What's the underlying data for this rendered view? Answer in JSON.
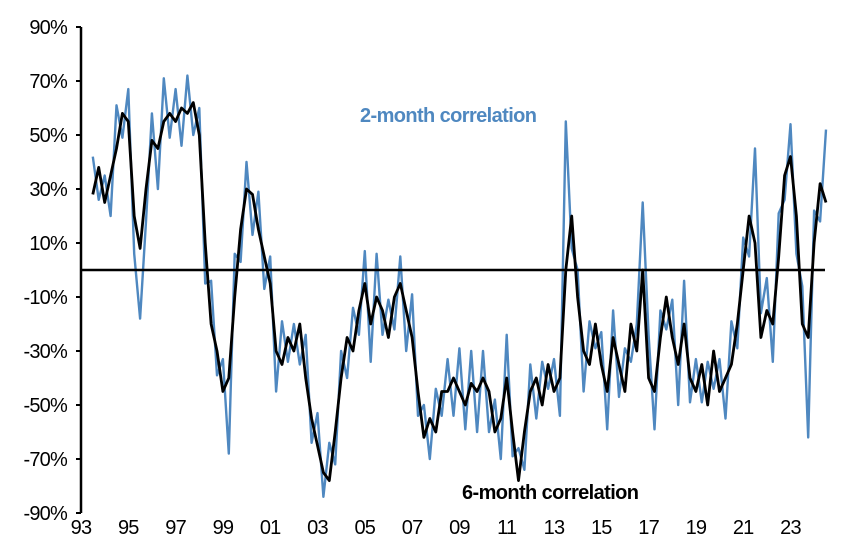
{
  "chart_data": {
    "type": "line",
    "title": "",
    "xlabel": "",
    "ylabel": "",
    "ylim": [
      -90,
      90
    ],
    "xlim": [
      1993,
      2025
    ],
    "y_ticks": [
      "90%",
      "70%",
      "50%",
      "30%",
      "10%",
      "-10%",
      "-30%",
      "-50%",
      "-70%",
      "-90%"
    ],
    "y_tick_values": [
      90,
      70,
      50,
      30,
      10,
      -10,
      -30,
      -50,
      -70,
      -90
    ],
    "x_ticks": [
      "93",
      "95",
      "97",
      "99",
      "01",
      "03",
      "05",
      "07",
      "09",
      "11",
      "13",
      "15",
      "17",
      "19",
      "21",
      "23"
    ],
    "x_tick_values": [
      1993,
      1995,
      1997,
      1999,
      2001,
      2003,
      2005,
      2007,
      2009,
      2011,
      2013,
      2015,
      2017,
      2019,
      2021,
      2023
    ],
    "reference_line": 0,
    "grid": false,
    "x": [
      1993.5,
      1993.75,
      1994,
      1994.25,
      1994.5,
      1994.75,
      1995,
      1995.25,
      1995.5,
      1995.75,
      1996,
      1996.25,
      1996.5,
      1996.75,
      1997,
      1997.25,
      1997.5,
      1997.75,
      1998,
      1998.25,
      1998.5,
      1998.75,
      1999,
      1999.25,
      1999.5,
      1999.75,
      2000,
      2000.25,
      2000.5,
      2000.75,
      2001,
      2001.25,
      2001.5,
      2001.75,
      2002,
      2002.25,
      2002.5,
      2002.75,
      2003,
      2003.25,
      2003.5,
      2003.75,
      2004,
      2004.25,
      2004.5,
      2004.75,
      2005,
      2005.25,
      2005.5,
      2005.75,
      2006,
      2006.25,
      2006.5,
      2006.75,
      2007,
      2007.25,
      2007.5,
      2007.75,
      2008,
      2008.25,
      2008.5,
      2008.75,
      2009,
      2009.25,
      2009.5,
      2009.75,
      2010,
      2010.25,
      2010.5,
      2010.75,
      2011,
      2011.25,
      2011.5,
      2011.75,
      2012,
      2012.25,
      2012.5,
      2012.75,
      2013,
      2013.25,
      2013.5,
      2013.75,
      2014,
      2014.25,
      2014.5,
      2014.75,
      2015,
      2015.25,
      2015.5,
      2015.75,
      2016,
      2016.25,
      2016.5,
      2016.75,
      2017,
      2017.25,
      2017.5,
      2017.75,
      2018,
      2018.25,
      2018.5,
      2018.75,
      2019,
      2019.25,
      2019.5,
      2019.75,
      2020,
      2020.25,
      2020.5,
      2020.75,
      2021,
      2021.25,
      2021.5,
      2021.75,
      2022,
      2022.25,
      2022.5,
      2022.75,
      2023,
      2023.25,
      2023.5,
      2023.75,
      2024,
      2024.25,
      2024.5
    ],
    "series": [
      {
        "name": "2-month correlation",
        "color": "#4f88c0",
        "values": [
          42,
          26,
          35,
          20,
          61,
          49,
          67,
          6,
          -18,
          18,
          58,
          30,
          71,
          49,
          67,
          46,
          72,
          50,
          60,
          -5,
          -4,
          -39,
          -33,
          -68,
          6,
          3,
          40,
          13,
          29,
          -7,
          5,
          -45,
          -19,
          -34,
          -20,
          -35,
          -24,
          -64,
          -53,
          -84,
          -64,
          -72,
          -30,
          -40,
          -14,
          -24,
          7,
          -34,
          6,
          -24,
          -11,
          -22,
          5,
          -30,
          -9,
          -54,
          -50,
          -70,
          -44,
          -54,
          -33,
          -54,
          -29,
          -59,
          -30,
          -60,
          -30,
          -60,
          -48,
          -70,
          -24,
          -69,
          -66,
          -74,
          -35,
          -55,
          -34,
          -44,
          -33,
          -54,
          55,
          8,
          0,
          -45,
          -19,
          -29,
          -23,
          -59,
          -15,
          -47,
          -29,
          -34,
          -20,
          25,
          -24,
          -59,
          -15,
          -22,
          -11,
          -50,
          -4,
          -49,
          -33,
          -49,
          -34,
          -44,
          -33,
          -55,
          -19,
          -29,
          12,
          5,
          45,
          -16,
          -3,
          -34,
          21,
          26,
          54,
          6,
          -6,
          -62,
          22,
          18,
          52
        ]
      },
      {
        "name": "6-month correlation",
        "color": "#000000",
        "values": [
          28,
          38,
          25,
          35,
          45,
          58,
          55,
          20,
          8,
          30,
          48,
          45,
          55,
          58,
          55,
          60,
          58,
          62,
          50,
          10,
          -20,
          -30,
          -45,
          -40,
          -10,
          15,
          30,
          28,
          15,
          5,
          -5,
          -30,
          -35,
          -25,
          -30,
          -20,
          -40,
          -55,
          -65,
          -75,
          -78,
          -60,
          -40,
          -25,
          -30,
          -15,
          -5,
          -20,
          -10,
          -15,
          -25,
          -10,
          -5,
          -15,
          -25,
          -45,
          -62,
          -55,
          -60,
          -45,
          -45,
          -40,
          -45,
          -50,
          -42,
          -45,
          -40,
          -45,
          -60,
          -55,
          -40,
          -60,
          -78,
          -60,
          -45,
          -40,
          -50,
          -35,
          -45,
          -40,
          0,
          20,
          -10,
          -30,
          -35,
          -20,
          -35,
          -45,
          -25,
          -35,
          -45,
          -20,
          -30,
          0,
          -40,
          -45,
          -25,
          -10,
          -25,
          -35,
          -20,
          -40,
          -45,
          -35,
          -50,
          -30,
          -45,
          -40,
          -35,
          -20,
          0,
          20,
          10,
          -25,
          -15,
          -20,
          5,
          35,
          42,
          20,
          -20,
          -25,
          10,
          32,
          25
        ]
      }
    ]
  }
}
